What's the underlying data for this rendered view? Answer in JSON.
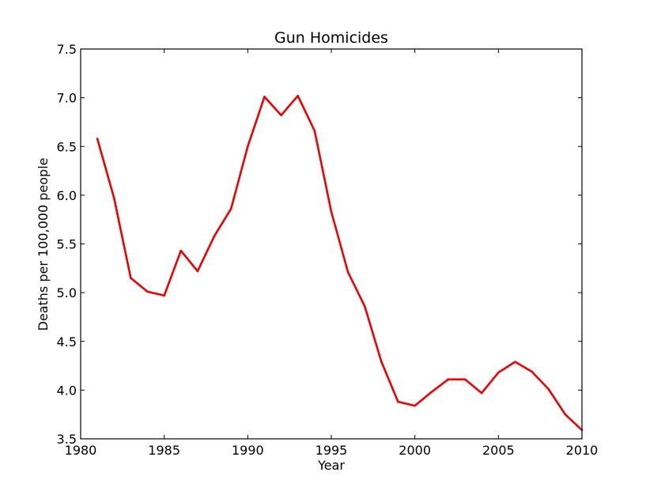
{
  "chart_data": {
    "type": "line",
    "title": "Gun Homicides",
    "xlabel": "Year",
    "ylabel": "Deaths per 100,000 people",
    "xlim": [
      1980,
      2010
    ],
    "ylim": [
      3.5,
      7.5
    ],
    "x_ticks": [
      "1980",
      "1985",
      "1990",
      "1995",
      "2000",
      "2005",
      "2010"
    ],
    "y_ticks": [
      "3.5",
      "4.0",
      "4.5",
      "5.0",
      "5.5",
      "6.0",
      "6.5",
      "7.0",
      "7.5"
    ],
    "grid": false,
    "series": [
      {
        "color": "#ee0000",
        "x": [
          1981,
          1982,
          1983,
          1984,
          1985,
          1986,
          1987,
          1988,
          1989,
          1990,
          1991,
          1992,
          1993,
          1994,
          1995,
          1996,
          1997,
          1998,
          1999,
          2000,
          2001,
          2002,
          2003,
          2004,
          2005,
          2006,
          2007,
          2008,
          2009,
          2010
        ],
        "y": [
          6.58,
          5.97,
          5.15,
          5.01,
          4.97,
          5.43,
          5.22,
          5.58,
          5.86,
          6.5,
          7.01,
          6.82,
          7.02,
          6.66,
          5.83,
          5.21,
          4.86,
          4.29,
          3.88,
          3.84,
          3.98,
          4.11,
          4.11,
          3.97,
          4.18,
          4.29,
          4.19,
          4.01,
          3.75,
          3.59
        ]
      }
    ]
  }
}
